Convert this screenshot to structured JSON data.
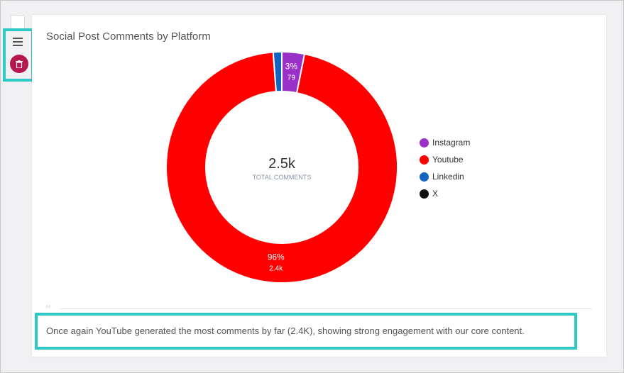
{
  "toolbar": {
    "icons": [
      "menu-icon",
      "trash-icon"
    ],
    "trash_color": "#b5174f"
  },
  "widget": {
    "title": "Social Post Comments by Platform"
  },
  "chart_data": {
    "type": "pie",
    "donut": true,
    "center_value": "2.5k",
    "center_label": "TOTAL COMMENTS",
    "categories": [
      "Instagram",
      "Youtube",
      "Linkedin",
      "X"
    ],
    "values": [
      79,
      2400,
      30,
      0
    ],
    "colors": [
      "#9b30c8",
      "#ff0000",
      "#1565c0",
      "#111111"
    ],
    "data_labels": [
      {
        "pct": "3%",
        "value": "79"
      },
      {
        "pct": "96%",
        "value": "2.4k"
      },
      null,
      null
    ],
    "legend_position": "right"
  },
  "insight": {
    "text": "Once again YouTube generated the most comments by far (2.4K), showing strong engagement with our core content."
  }
}
